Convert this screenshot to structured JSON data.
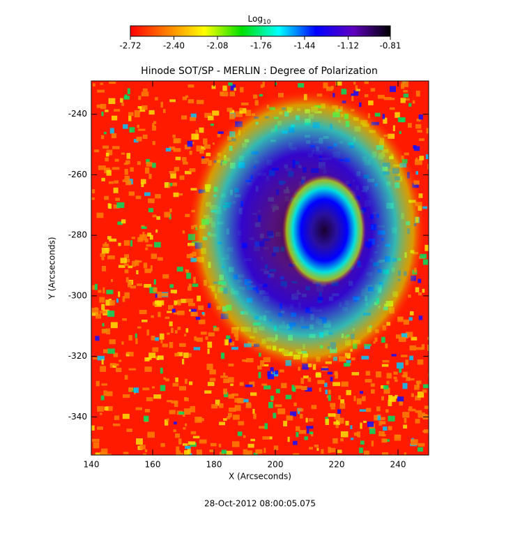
{
  "chart_data": {
    "type": "image",
    "title": "Hinode SOT/SP - MERLIN : Degree of Polarization",
    "colorbar_label": "Log",
    "colorbar_label_subscript": "10",
    "colorbar_lim": [
      -2.72,
      -0.81
    ],
    "colorbar_ticks": [
      -2.72,
      {
        "value": -2.4,
        "label": "-2.40"
      },
      -2.08,
      -1.76,
      -1.44,
      -1.12,
      -0.81
    ],
    "colormap": [
      "#ff0000",
      "#ff8000",
      "#ffff00",
      "#00e000",
      "#00ffff",
      "#0000ff",
      "#6000c0",
      "#000000"
    ],
    "x_label": "X (Arcseconds)",
    "y_label": "Y (Arcseconds)",
    "xlim": [
      140,
      250
    ],
    "xticks": [
      140,
      160,
      180,
      200,
      220,
      240
    ],
    "ylim": [
      -352.6,
      -229
    ],
    "yticks": [
      -240,
      -260,
      -280,
      -300,
      -320,
      -340
    ],
    "date": "28-Oct-2012 08:00:05.075"
  }
}
